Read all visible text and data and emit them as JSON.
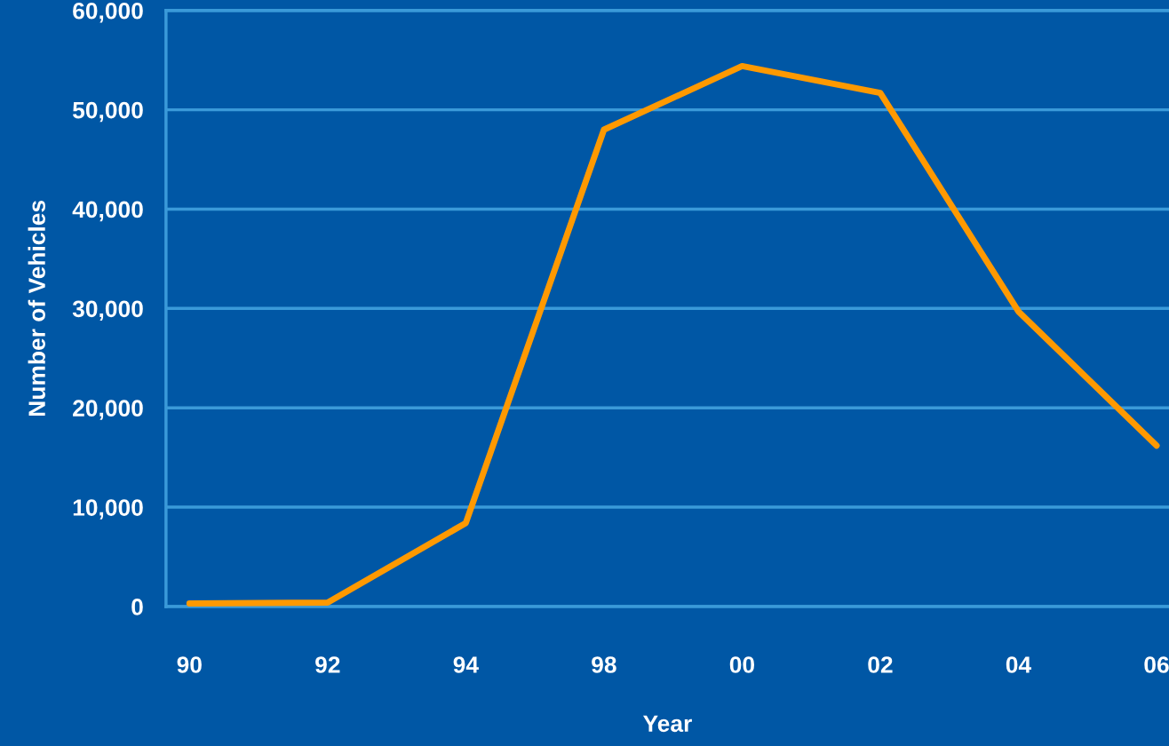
{
  "chart_data": {
    "type": "line",
    "xlabel": "Year",
    "ylabel": "Number of Vehicles",
    "categories": [
      "90",
      "92",
      "94",
      "98",
      "00",
      "02",
      "04",
      "06"
    ],
    "series": [
      {
        "color": "#ff9900",
        "values": [
          300,
          400,
          8400,
          48000,
          54400,
          51700,
          29700,
          16200
        ]
      }
    ],
    "ylim": [
      0,
      60000
    ],
    "yticks": [
      {
        "value": 0,
        "label": "0"
      },
      {
        "value": 10000,
        "label": "10,000"
      },
      {
        "value": 20000,
        "label": "20,000"
      },
      {
        "value": 30000,
        "label": "30,000"
      },
      {
        "value": 40000,
        "label": "40,000"
      },
      {
        "value": 50000,
        "label": "50,000"
      },
      {
        "value": 60000,
        "label": "60,000"
      }
    ],
    "grid": "y",
    "marker": "none",
    "line_style": "solid"
  }
}
